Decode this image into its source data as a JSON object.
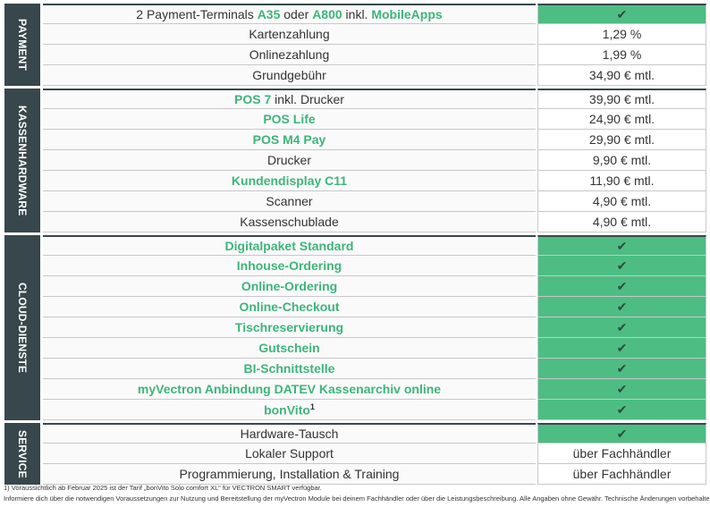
{
  "groups": [
    {
      "title": "PAYMENT",
      "rows": [
        {
          "parts": [
            {
              "text": "2 Payment-Terminals "
            },
            {
              "text": "A35",
              "green": true
            },
            {
              "text": " oder "
            },
            {
              "text": "A800",
              "green": true
            },
            {
              "text": " inkl. "
            },
            {
              "text": "MobileApps",
              "green": true
            }
          ],
          "value": "✔",
          "highlight": true
        },
        {
          "parts": [
            {
              "text": "Kartenzahlung"
            }
          ],
          "value": "1,29 %",
          "highlight": false
        },
        {
          "parts": [
            {
              "text": "Onlinezahlung"
            }
          ],
          "value": "1,99 %",
          "highlight": false
        },
        {
          "parts": [
            {
              "text": "Grundgebühr"
            }
          ],
          "value": "34,90 € mtl.",
          "highlight": false
        }
      ]
    },
    {
      "title": "KASSENHARDWARE",
      "rows": [
        {
          "parts": [
            {
              "text": "POS 7",
              "green": true
            },
            {
              "text": " inkl. Drucker"
            }
          ],
          "value": "39,90 € mtl.",
          "highlight": false
        },
        {
          "parts": [
            {
              "text": "POS Life",
              "green": true
            }
          ],
          "value": "24,90 € mtl.",
          "highlight": false
        },
        {
          "parts": [
            {
              "text": "POS M4 Pay",
              "green": true
            }
          ],
          "value": "29,90 € mtl.",
          "highlight": false
        },
        {
          "parts": [
            {
              "text": "Drucker"
            }
          ],
          "value": "9,90 € mtl.",
          "highlight": false
        },
        {
          "parts": [
            {
              "text": "Kundendisplay C11",
              "green": true
            }
          ],
          "value": "11,90 € mtl.",
          "highlight": false
        },
        {
          "parts": [
            {
              "text": "Scanner"
            }
          ],
          "value": "4,90 € mtl.",
          "highlight": false
        },
        {
          "parts": [
            {
              "text": "Kassenschublade"
            }
          ],
          "value": "4,90 € mtl.",
          "highlight": false
        }
      ]
    },
    {
      "title": "CLOUD-DIENSTE",
      "rows": [
        {
          "parts": [
            {
              "text": "Digitalpaket Standard",
              "green": true
            }
          ],
          "value": "✔",
          "highlight": true
        },
        {
          "parts": [
            {
              "text": "Inhouse-Ordering",
              "green": true
            }
          ],
          "value": "✔",
          "highlight": true
        },
        {
          "parts": [
            {
              "text": "Online-Ordering",
              "green": true
            }
          ],
          "value": "✔",
          "highlight": true
        },
        {
          "parts": [
            {
              "text": "Online-Checkout",
              "green": true
            }
          ],
          "value": "✔",
          "highlight": true
        },
        {
          "parts": [
            {
              "text": "Tischreservierung",
              "green": true
            }
          ],
          "value": "✔",
          "highlight": true
        },
        {
          "parts": [
            {
              "text": "Gutschein",
              "green": true
            }
          ],
          "value": "✔",
          "highlight": true
        },
        {
          "parts": [
            {
              "text": "BI-Schnittstelle",
              "green": true
            }
          ],
          "value": "✔",
          "highlight": true
        },
        {
          "parts": [
            {
              "text": "myVectron Anbindung DATEV Kassenarchiv online",
              "green": true
            }
          ],
          "value": "✔",
          "highlight": true
        },
        {
          "parts": [
            {
              "text": "bonVito",
              "green": true
            },
            {
              "text": "1",
              "sup": true
            }
          ],
          "value": "✔",
          "highlight": true
        }
      ]
    },
    {
      "title": "SERVICE",
      "rows": [
        {
          "parts": [
            {
              "text": "Hardware-Tausch"
            }
          ],
          "value": "✔",
          "highlight": true
        },
        {
          "parts": [
            {
              "text": "Lokaler Support"
            }
          ],
          "value": "über Fachhändler",
          "highlight": false
        },
        {
          "parts": [
            {
              "text": "Programmierung, Installation & Training"
            }
          ],
          "value": "über Fachhändler",
          "highlight": false
        }
      ]
    }
  ],
  "footnotes": [
    "1) Voraussichtlich ab Februar 2025 ist der Tarif „bonVito Solo comfort XL“ für VECTRON SMART verfügbar.",
    "Informiere dich über die notwendigen Voraussetzungen zur Nutzung und Bereitstellung der myVectron Module bei deinem Fachhändler oder über die Leistungsbeschreibung. Alle Angaben ohne Gewähr. Technische Änderungen vorbehalten."
  ]
}
